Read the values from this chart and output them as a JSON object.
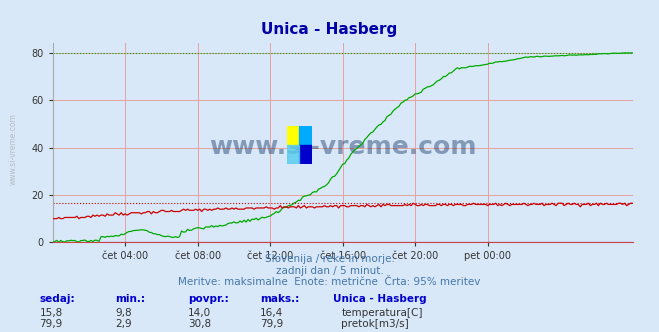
{
  "title": "Unica - Hasberg",
  "bg_color": "#d8e8f8",
  "plot_bg_color": "#d8e8f8",
  "x_ticks_labels": [
    "čet 04:00",
    "čet 08:00",
    "čet 12:00",
    "čet 16:00",
    "čet 20:00",
    "pet 00:00"
  ],
  "ylim": [
    0,
    84
  ],
  "yticks": [
    0,
    20,
    40,
    60,
    80
  ],
  "grid_color": "#e8a0a0",
  "temp_color": "#cc0000",
  "flow_color": "#00aa00",
  "height_color": "#0000cc",
  "dotted_temp_max": 16.4,
  "dotted_flow_max": 79.9,
  "subtitle1": "Slovenija / reke in morje.",
  "subtitle2": "zadnji dan / 5 minut.",
  "subtitle3": "Meritve: maksimalne  Enote: metrične  Črta: 95% meritev",
  "subtitle_color": "#4477aa",
  "table_headers": [
    "sedaj:",
    "min.:",
    "povpr.:",
    "maks.:"
  ],
  "table_header_color": "#0000cc",
  "row1_values": [
    "15,8",
    "9,8",
    "14,0",
    "16,4"
  ],
  "row2_values": [
    "79,9",
    "2,9",
    "30,8",
    "79,9"
  ],
  "row1_label": "temperatura[C]",
  "row2_label": "pretok[m3/s]",
  "watermark": "www.si-vreme.com",
  "watermark_color": "#1a3a6a",
  "side_watermark_color": "#aaaaaa"
}
